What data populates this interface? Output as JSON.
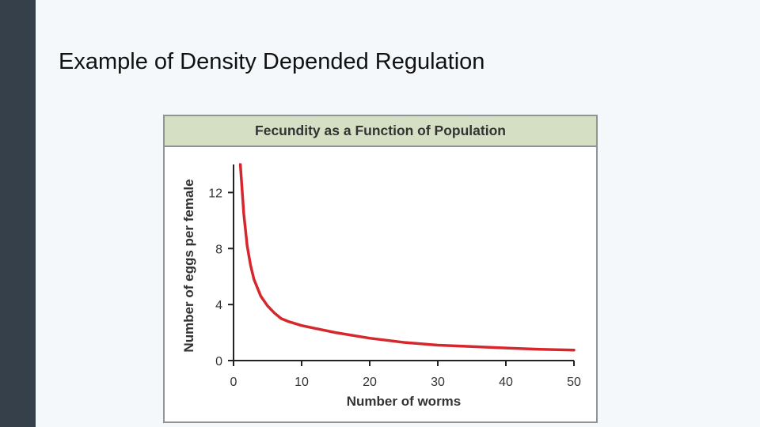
{
  "slide": {
    "title": "Example of Density Depended Regulation"
  },
  "colors": {
    "sidebar": "#36404a",
    "background": "#f4f8fb",
    "header_band": "#d4dfc3",
    "curve": "#d6272c",
    "axis": "#222222"
  },
  "chart_data": {
    "type": "line",
    "title": "Fecundity as a Function of Population",
    "xlabel": "Number of worms",
    "ylabel": "Number of eggs per female",
    "xlim": [
      0,
      50
    ],
    "ylim": [
      0,
      14
    ],
    "xticks": [
      0,
      10,
      20,
      30,
      40,
      50
    ],
    "yticks": [
      0,
      4,
      8,
      12
    ],
    "xtick_labels": [
      "0",
      "10",
      "20",
      "30",
      "40",
      "50"
    ],
    "ytick_labels": [
      "0",
      "4",
      "8",
      "12"
    ],
    "grid": false,
    "series": [
      {
        "x": [
          1,
          1.5,
          2,
          2.5,
          3,
          4,
          5,
          6,
          7,
          8,
          10,
          12,
          15,
          20,
          25,
          30,
          35,
          40,
          45,
          50
        ],
        "y": [
          14,
          10.5,
          8.2,
          6.8,
          5.8,
          4.6,
          3.9,
          3.4,
          3.0,
          2.8,
          2.5,
          2.3,
          2.0,
          1.6,
          1.3,
          1.1,
          1.0,
          0.9,
          0.8,
          0.75
        ]
      }
    ]
  }
}
